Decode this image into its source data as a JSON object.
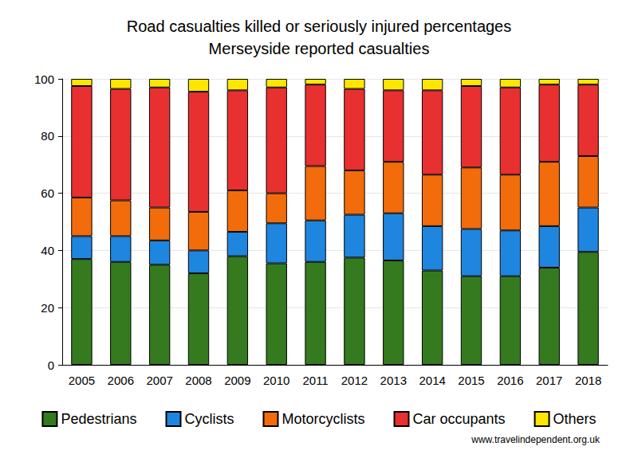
{
  "chart_data": {
    "type": "bar",
    "title": "Road casualties killed or seriously injured percentages",
    "subtitle": "Merseyside reported casualties",
    "annotations": [
      "www.travelindependent.org.uk"
    ],
    "categories": [
      "2005",
      "2006",
      "2007",
      "2008",
      "2009",
      "2010",
      "2011",
      "2012",
      "2013",
      "2014",
      "2015",
      "2016",
      "2017",
      "2018"
    ],
    "stacked": true,
    "grid": true,
    "legend": "bottom",
    "ylim": [
      0,
      100
    ],
    "yticks": [
      0,
      20,
      40,
      60,
      80,
      100
    ],
    "series": [
      {
        "name": "Pedestrians",
        "color": "#357a1f",
        "values": [
          37,
          36,
          35,
          32,
          38,
          35.5,
          36,
          37.5,
          36.5,
          33,
          31,
          31,
          34,
          39.5
        ]
      },
      {
        "name": "Cyclists",
        "color": "#1f86e0",
        "values": [
          8,
          9,
          8.5,
          8,
          8.5,
          14,
          14.5,
          15,
          16.5,
          15.5,
          16.5,
          16,
          14.5,
          15.5
        ]
      },
      {
        "name": "Motorcyclists",
        "color": "#f26c0b",
        "values": [
          13.5,
          12.5,
          11.5,
          13.5,
          14.5,
          10.5,
          19,
          15.5,
          18,
          18,
          21.5,
          19.5,
          22.5,
          18
        ]
      },
      {
        "name": "Car occupants",
        "color": "#e93030",
        "values": [
          39,
          39,
          42,
          42,
          35,
          37,
          28.5,
          28.5,
          25,
          29.5,
          28.5,
          30.5,
          27,
          25
        ]
      },
      {
        "name": "Others",
        "color": "#ffe600",
        "values": [
          2.5,
          3.5,
          3,
          4.5,
          4,
          3,
          2,
          3.5,
          4,
          4,
          2.5,
          3,
          2,
          2
        ]
      }
    ]
  }
}
